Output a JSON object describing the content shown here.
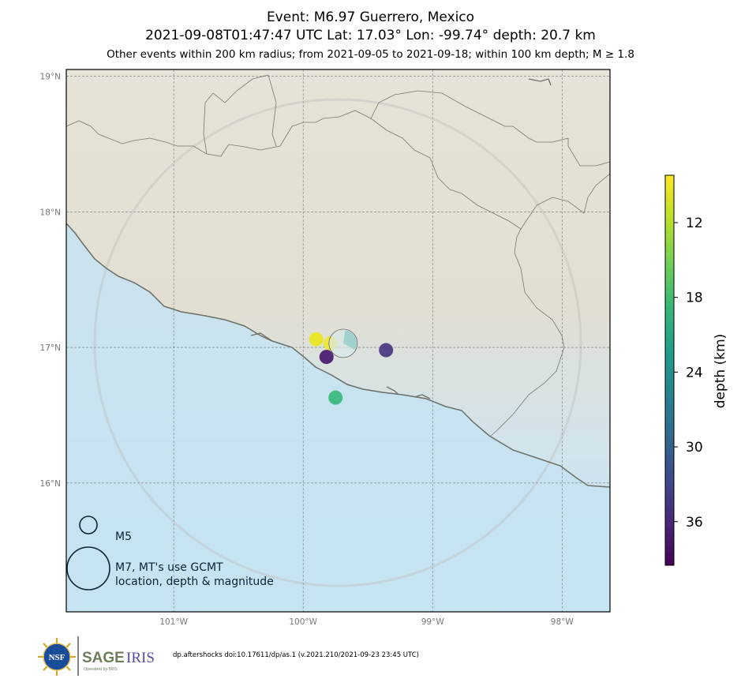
{
  "titles": {
    "line1": "Event: M6.97 Guerrero, Mexico",
    "line2": "2021-09-08T01:47:47 UTC Lat: 17.03° Lon: -99.74° depth: 20.7 km",
    "line3": "Other events within 200 km radius; from 2021-09-05 to 2021-09-18; within 100 km depth; M ≥ 1.8"
  },
  "map": {
    "lon_range": [
      -101.83,
      -97.63
    ],
    "lat_range": [
      15.05,
      19.05
    ],
    "lon_ticks": [
      {
        "value": -101,
        "label": "101°W"
      },
      {
        "value": -100,
        "label": "100°W"
      },
      {
        "value": -99,
        "label": "99°W"
      },
      {
        "value": -98,
        "label": "98°W"
      }
    ],
    "lat_ticks": [
      {
        "value": 19,
        "label": "19°N"
      },
      {
        "value": 18,
        "label": "18°N"
      },
      {
        "value": 17,
        "label": "17°N"
      },
      {
        "value": 16,
        "label": "16°N"
      }
    ],
    "radius_km": 200,
    "mainshock": {
      "lon": -99.74,
      "lat": 17.03,
      "depth": 20.7,
      "mag": 6.97
    }
  },
  "events": [
    {
      "lon": -99.9,
      "lat": 17.06,
      "depth": 11,
      "color": "#e9e51a"
    },
    {
      "lon": -99.79,
      "lat": 17.03,
      "depth": 11,
      "color": "#f0e82b"
    },
    {
      "lon": -99.82,
      "lat": 16.93,
      "depth": 38,
      "color": "#42146b"
    },
    {
      "lon": -99.36,
      "lat": 16.98,
      "depth": 36,
      "color": "#46327e"
    },
    {
      "lon": -99.75,
      "lat": 16.63,
      "depth": 19,
      "color": "#35b779"
    }
  ],
  "colorbar": {
    "label": "depth (km)",
    "ticks": [
      "12",
      "18",
      "24",
      "30",
      "36"
    ],
    "colors": [
      "#440154",
      "#482878",
      "#3e4989",
      "#31688e",
      "#26828e",
      "#1f9e89",
      "#35b779",
      "#6ece58",
      "#b5de2b",
      "#fde725"
    ]
  },
  "legend": {
    "small_label": "M5",
    "large_label_line1": "M7, MT's use GCMT",
    "large_label_line2": "location, depth & magnitude"
  },
  "footer": {
    "doi": "dp.aftershocks doi:10.17611/dp/as.1 (v.2021.210/2021-09-23 23:45 UTC)",
    "nsf_text": "NSF",
    "sage_text": "SAGE",
    "iris_text": "IRIS",
    "operated_text": "Operated by IRIS"
  }
}
